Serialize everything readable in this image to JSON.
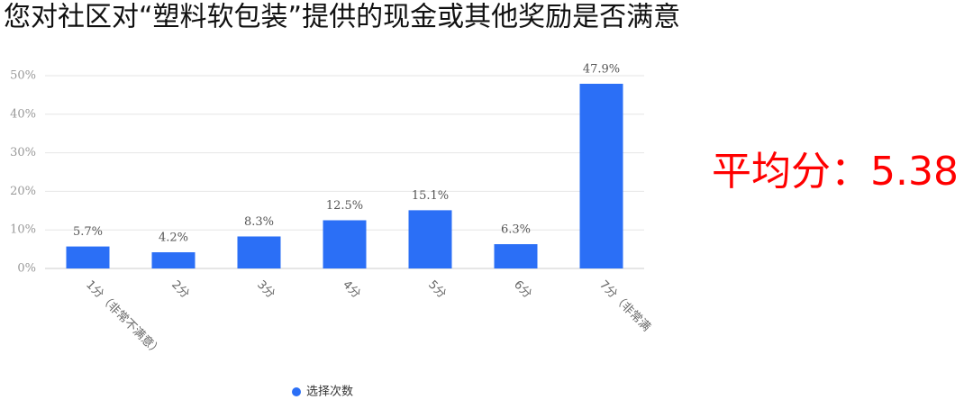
{
  "chart_data": {
    "type": "bar",
    "title": "您对社区对“塑料软包装”提供的现金或其他奖励是否满意",
    "annotation": "平均分：5.38",
    "categories": [
      "1分（非常不满意）",
      "2分",
      "3分",
      "4分",
      "5分",
      "6分",
      "7分（非常满"
    ],
    "series": [
      {
        "name": "选择次数",
        "color": "#2b6ff6",
        "values": [
          5.7,
          4.2,
          8.3,
          12.5,
          15.1,
          6.3,
          47.9
        ],
        "value_labels": [
          "5.7%",
          "4.2%",
          "8.3%",
          "12.5%",
          "15.1%",
          "6.3%",
          "47.9%"
        ]
      }
    ],
    "ylim": [
      0,
      50
    ],
    "yticks": [
      {
        "value": 0,
        "label": "0%"
      },
      {
        "value": 10,
        "label": "10%"
      },
      {
        "value": 20,
        "label": "20%"
      },
      {
        "value": 30,
        "label": "30%"
      },
      {
        "value": 40,
        "label": "40%"
      },
      {
        "value": 50,
        "label": "50%"
      }
    ],
    "grid": true
  }
}
